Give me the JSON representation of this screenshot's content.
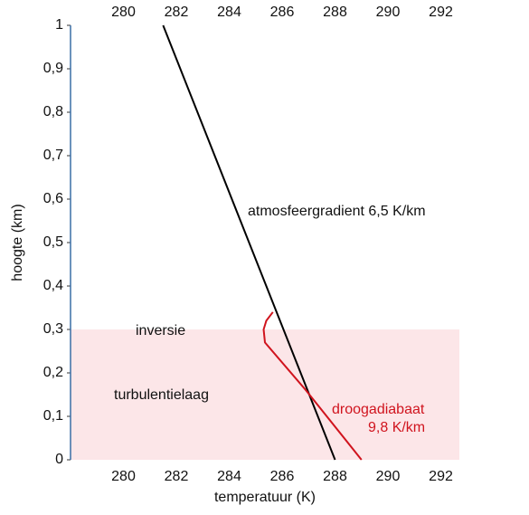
{
  "chart_data": {
    "type": "line",
    "x_label": "temperatuur (K)",
    "y_label": "hoogte (km)",
    "xlim": [
      278,
      292.7
    ],
    "ylim": [
      0,
      1
    ],
    "xticks": [
      280,
      282,
      284,
      286,
      288,
      290,
      292
    ],
    "yticks": [
      0,
      {
        "value": 0.1,
        "label": "0,1"
      },
      {
        "value": 0.2,
        "label": "0,2"
      },
      {
        "value": 0.3,
        "label": "0,3"
      },
      {
        "value": 0.4,
        "label": "0,4"
      },
      {
        "value": 0.5,
        "label": "0,5"
      },
      {
        "value": 0.6,
        "label": "0,6"
      },
      {
        "value": 0.7,
        "label": "0,7"
      },
      {
        "value": 0.8,
        "label": "0,8"
      },
      {
        "value": 0.9,
        "label": "0,9"
      },
      1
    ],
    "band": {
      "ylim": [
        0,
        0.3
      ],
      "color": "#fce6e8"
    },
    "series": [
      {
        "color": "#000000",
        "x": [
          288,
          281.5
        ],
        "values": [
          0,
          1
        ]
      },
      {
        "color": "#d0141e",
        "x": [
          289,
          286.9,
          285.35,
          285.3,
          285.4,
          285.65
        ],
        "values": [
          0,
          0.16,
          0.27,
          0.3,
          0.32,
          0.34
        ]
      }
    ],
    "annotations": [
      "atmosfeergradient 6,5 K/km",
      "inversie",
      "turbulentielaag",
      "droogadiabaat",
      "9,8 K/km"
    ]
  }
}
